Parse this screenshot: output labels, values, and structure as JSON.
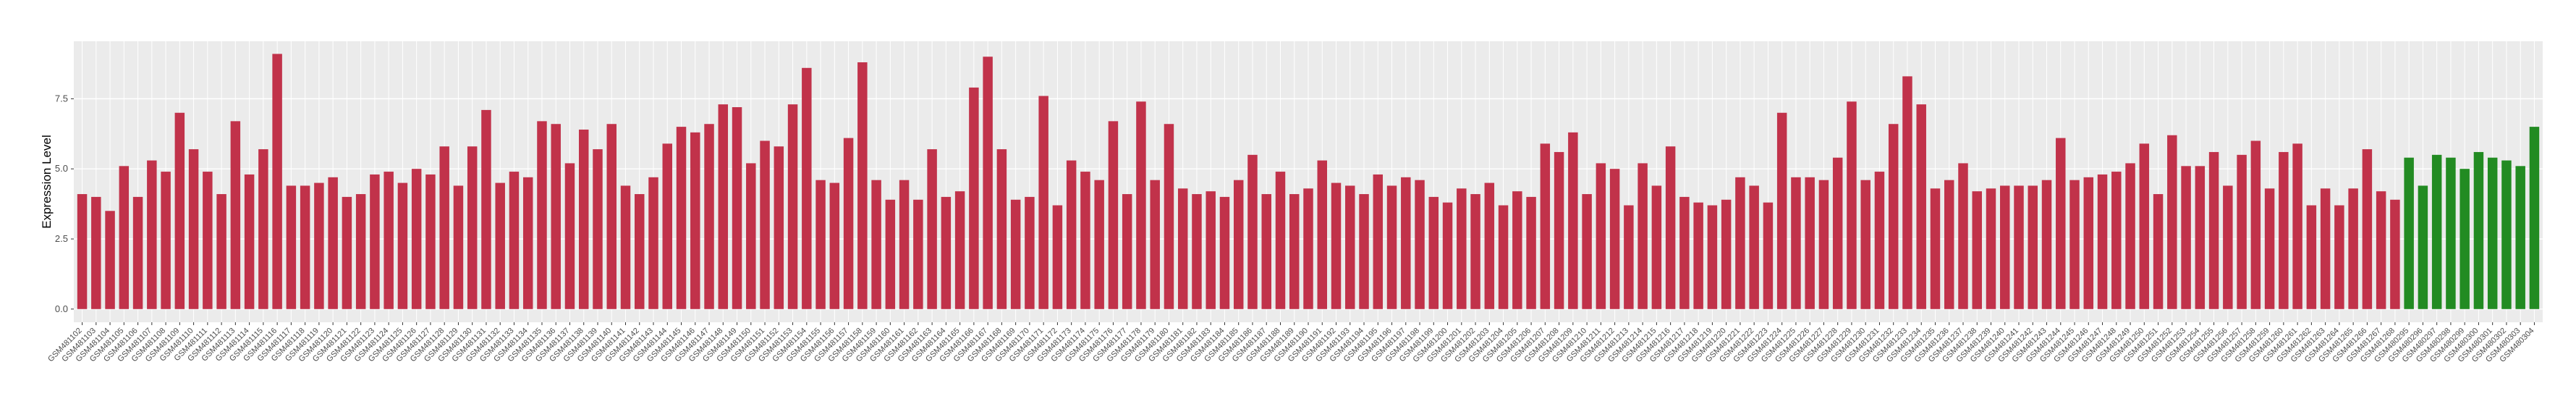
{
  "chart_data": {
    "type": "bar",
    "y_label": "Expression Level",
    "ylim": [
      -0.47,
      9.55
    ],
    "yticks": [
      {
        "value": 0,
        "label": "0.0"
      },
      {
        "value": 2.5,
        "label": "2.5"
      },
      {
        "value": 5,
        "label": "5.0"
      },
      {
        "value": 7.5,
        "label": "7.5"
      }
    ],
    "grid": true,
    "categories": [
      "GSM481102",
      "GSM481103",
      "GSM481104",
      "GSM481105",
      "GSM481106",
      "GSM481107",
      "GSM481108",
      "GSM481109",
      "GSM481110",
      "GSM481111",
      "GSM481112",
      "GSM481113",
      "GSM481114",
      "GSM481115",
      "GSM481116",
      "GSM481117",
      "GSM481118",
      "GSM481119",
      "GSM481120",
      "GSM481121",
      "GSM481122",
      "GSM481123",
      "GSM481124",
      "GSM481125",
      "GSM481126",
      "GSM481127",
      "GSM481128",
      "GSM481129",
      "GSM481130",
      "GSM481131",
      "GSM481132",
      "GSM481133",
      "GSM481134",
      "GSM481135",
      "GSM481136",
      "GSM481137",
      "GSM481138",
      "GSM481139",
      "GSM481140",
      "GSM481141",
      "GSM481142",
      "GSM481143",
      "GSM481144",
      "GSM481145",
      "GSM481146",
      "GSM481147",
      "GSM481148",
      "GSM481149",
      "GSM481150",
      "GSM481151",
      "GSM481152",
      "GSM481153",
      "GSM481154",
      "GSM481155",
      "GSM481156",
      "GSM481157",
      "GSM481158",
      "GSM481159",
      "GSM481160",
      "GSM481161",
      "GSM481162",
      "GSM481163",
      "GSM481164",
      "GSM481165",
      "GSM481166",
      "GSM481167",
      "GSM481168",
      "GSM481169",
      "GSM481170",
      "GSM481171",
      "GSM481172",
      "GSM481173",
      "GSM481174",
      "GSM481175",
      "GSM481176",
      "GSM481177",
      "GSM481178",
      "GSM481179",
      "GSM481180",
      "GSM481181",
      "GSM481182",
      "GSM481183",
      "GSM481184",
      "GSM481185",
      "GSM481186",
      "GSM481187",
      "GSM481188",
      "GSM481189",
      "GSM481190",
      "GSM481191",
      "GSM481192",
      "GSM481193",
      "GSM481194",
      "GSM481195",
      "GSM481196",
      "GSM481197",
      "GSM481198",
      "GSM481199",
      "GSM481200",
      "GSM481201",
      "GSM481202",
      "GSM481203",
      "GSM481204",
      "GSM481205",
      "GSM481206",
      "GSM481207",
      "GSM481208",
      "GSM481209",
      "GSM481210",
      "GSM481211",
      "GSM481212",
      "GSM481213",
      "GSM481214",
      "GSM481215",
      "GSM481216",
      "GSM481217",
      "GSM481218",
      "GSM481219",
      "GSM481220",
      "GSM481221",
      "GSM481222",
      "GSM481223",
      "GSM481224",
      "GSM481225",
      "GSM481226",
      "GSM481227",
      "GSM481228",
      "GSM481229",
      "GSM481230",
      "GSM481231",
      "GSM481232",
      "GSM481233",
      "GSM481234",
      "GSM481235",
      "GSM481236",
      "GSM481237",
      "GSM481238",
      "GSM481239",
      "GSM481240",
      "GSM481241",
      "GSM481242",
      "GSM481243",
      "GSM481244",
      "GSM481245",
      "GSM481246",
      "GSM481247",
      "GSM481248",
      "GSM481249",
      "GSM481250",
      "GSM481251",
      "GSM481252",
      "GSM481253",
      "GSM481254",
      "GSM481255",
      "GSM481256",
      "GSM481257",
      "GSM481258",
      "GSM481259",
      "GSM481260",
      "GSM481261",
      "GSM481262",
      "GSM481263",
      "GSM481264",
      "GSM481265",
      "GSM481266",
      "GSM481267",
      "GSM481268",
      "GSM480295",
      "GSM480296",
      "GSM480297",
      "GSM480298",
      "GSM480299",
      "GSM480300",
      "GSM480301",
      "GSM480302",
      "GSM480303",
      "GSM480304"
    ],
    "series": [
      {
        "color": "#c1324a",
        "values": [
          4.1,
          4.0,
          3.5,
          5.1,
          4.0,
          5.3,
          4.9,
          7.0,
          5.7,
          4.9,
          4.1,
          6.7,
          4.8,
          5.7,
          9.1,
          4.4,
          4.4,
          4.5,
          4.7,
          4.0,
          4.1,
          4.8,
          4.9,
          4.5,
          5.0,
          4.8,
          5.8,
          4.4,
          5.8,
          7.1,
          4.5,
          4.9,
          4.7,
          6.7,
          6.6,
          5.2,
          6.4,
          5.7,
          6.6,
          4.4,
          4.1,
          4.7,
          5.9,
          6.5,
          6.3,
          6.6,
          7.3,
          7.2,
          5.2,
          6.0,
          5.8,
          7.3,
          8.6,
          4.6,
          4.5,
          6.1,
          8.8,
          4.6,
          3.9,
          4.6,
          3.9,
          5.7,
          4.0,
          4.2,
          7.9,
          9.0,
          5.7,
          3.9,
          4.0,
          7.6,
          3.7,
          5.3,
          4.9,
          4.6,
          6.7,
          4.1,
          7.4,
          4.6,
          6.6,
          4.3,
          4.1,
          4.2,
          4.0,
          4.6,
          5.5,
          4.1,
          4.9,
          4.1,
          4.3,
          5.3,
          4.5,
          4.4,
          4.1,
          4.8,
          4.4,
          4.7,
          4.6,
          4.0,
          3.8,
          4.3,
          4.1,
          4.5,
          3.7,
          4.2,
          4.0,
          5.9,
          5.6,
          6.3,
          4.1,
          5.2,
          5.0,
          3.7,
          5.2,
          4.4,
          5.8,
          4.0,
          3.8,
          3.7,
          3.9,
          4.7,
          4.4,
          3.8,
          7.0,
          4.7,
          4.7,
          4.6,
          5.4,
          7.4,
          4.6,
          4.9,
          6.6,
          8.3,
          7.3,
          4.3,
          4.6,
          5.2,
          4.2,
          4.3,
          4.4,
          4.4,
          4.4,
          4.6,
          6.1,
          4.6,
          4.7,
          4.8,
          4.9,
          5.2,
          5.9,
          4.1,
          6.2,
          5.1,
          5.1,
          5.6,
          4.4,
          5.5,
          6.0,
          4.3,
          5.6,
          5.9,
          3.7,
          4.3,
          3.7,
          4.3,
          5.7,
          4.2,
          3.9,
          null,
          null,
          null,
          null,
          null,
          null,
          null,
          null,
          null,
          null
        ]
      },
      {
        "color": "#228b22",
        "values": [
          null,
          null,
          null,
          null,
          null,
          null,
          null,
          null,
          null,
          null,
          null,
          null,
          null,
          null,
          null,
          null,
          null,
          null,
          null,
          null,
          null,
          null,
          null,
          null,
          null,
          null,
          null,
          null,
          null,
          null,
          null,
          null,
          null,
          null,
          null,
          null,
          null,
          null,
          null,
          null,
          null,
          null,
          null,
          null,
          null,
          null,
          null,
          null,
          null,
          null,
          null,
          null,
          null,
          null,
          null,
          null,
          null,
          null,
          null,
          null,
          null,
          null,
          null,
          null,
          null,
          null,
          null,
          null,
          null,
          null,
          null,
          null,
          null,
          null,
          null,
          null,
          null,
          null,
          null,
          null,
          null,
          null,
          null,
          null,
          null,
          null,
          null,
          null,
          null,
          null,
          null,
          null,
          null,
          null,
          null,
          null,
          null,
          null,
          null,
          null,
          null,
          null,
          null,
          null,
          null,
          null,
          null,
          null,
          null,
          null,
          null,
          null,
          null,
          null,
          null,
          null,
          null,
          null,
          null,
          null,
          null,
          null,
          null,
          null,
          null,
          null,
          null,
          null,
          null,
          null,
          null,
          null,
          null,
          null,
          null,
          null,
          null,
          null,
          null,
          null,
          null,
          null,
          null,
          null,
          null,
          null,
          null,
          null,
          null,
          null,
          null,
          null,
          null,
          null,
          null,
          null,
          null,
          null,
          null,
          null,
          null,
          null,
          null,
          null,
          null,
          null,
          null,
          5.4,
          4.4,
          5.5,
          5.4,
          5.0,
          5.6,
          5.4,
          5.3,
          5.1,
          6.5
        ]
      }
    ]
  }
}
